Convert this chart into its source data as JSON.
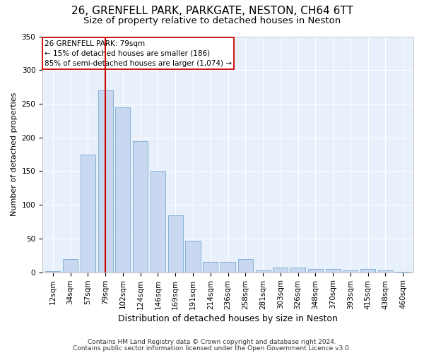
{
  "title1": "26, GRENFELL PARK, PARKGATE, NESTON, CH64 6TT",
  "title2": "Size of property relative to detached houses in Neston",
  "xlabel": "Distribution of detached houses by size in Neston",
  "ylabel": "Number of detached properties",
  "categories": [
    "12sqm",
    "34sqm",
    "57sqm",
    "79sqm",
    "102sqm",
    "124sqm",
    "146sqm",
    "169sqm",
    "191sqm",
    "214sqm",
    "236sqm",
    "258sqm",
    "281sqm",
    "303sqm",
    "326sqm",
    "348sqm",
    "370sqm",
    "393sqm",
    "415sqm",
    "438sqm",
    "460sqm"
  ],
  "values": [
    2,
    20,
    175,
    270,
    245,
    195,
    150,
    85,
    47,
    15,
    15,
    20,
    3,
    7,
    7,
    5,
    5,
    3,
    5,
    3,
    1
  ],
  "bar_color": "#c8d8f0",
  "bar_edge_color": "#7aaad0",
  "red_line_index": 3,
  "annotation_line1": "26 GRENFELL PARK: 79sqm",
  "annotation_line2": "← 15% of detached houses are smaller (186)",
  "annotation_line3": "85% of semi-detached houses are larger (1,074) →",
  "annotation_box_color": "#ffffff",
  "annotation_box_edge": "#cc0000",
  "ylim": [
    0,
    350
  ],
  "yticks": [
    0,
    50,
    100,
    150,
    200,
    250,
    300,
    350
  ],
  "footer1": "Contains HM Land Registry data © Crown copyright and database right 2024.",
  "footer2": "Contains public sector information licensed under the Open Government Licence v3.0.",
  "bg_color": "#e8f0fb",
  "grid_color": "#ffffff",
  "title1_fontsize": 11,
  "title2_fontsize": 9.5,
  "xlabel_fontsize": 9,
  "ylabel_fontsize": 8,
  "tick_fontsize": 7.5,
  "annotation_fontsize": 7.5,
  "footer_fontsize": 6.5
}
